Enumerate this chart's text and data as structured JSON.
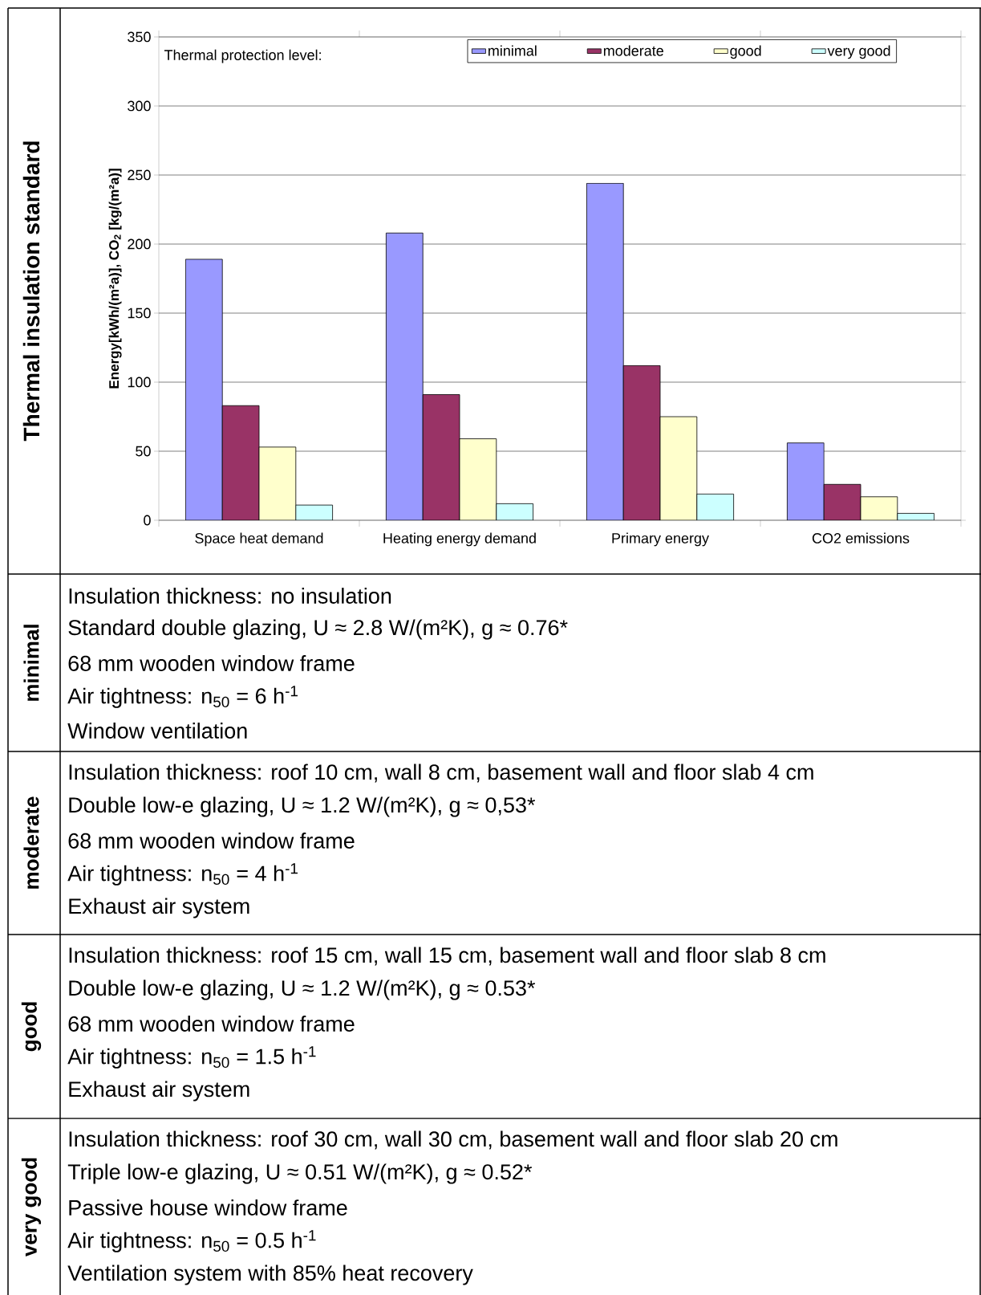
{
  "chart_data": {
    "type": "bar",
    "categories": [
      "Space heat demand",
      "Heating energy demand",
      "Primary energy",
      "CO2 emissions"
    ],
    "series": [
      {
        "name": "minimal",
        "color": "#9999ff",
        "values": [
          189,
          208,
          244,
          56
        ]
      },
      {
        "name": "moderate",
        "color": "#993366",
        "values": [
          83,
          91,
          112,
          26
        ]
      },
      {
        "name": "good",
        "color": "#ffffcc",
        "values": [
          53,
          59,
          75,
          17
        ]
      },
      {
        "name": "very good",
        "color": "#ccffff",
        "values": [
          11,
          12,
          19,
          5
        ]
      }
    ],
    "ylabel": "Energy[kWh/(m²a)], CO$_{2}$ [kg/(m²a)]",
    "legend_title": "Thermal protection level:",
    "legend": "top",
    "ylim": [
      0,
      350
    ],
    "yticks": [
      0,
      50,
      100,
      150,
      200,
      250,
      300,
      350
    ],
    "grid": "y",
    "annotations": [
      "Thermal insulation standard",
      "minimal",
      "Insulation thickness: no insulation",
      "Standard double glazing, U ≈ 2.8 W/(m²K), g  ≈ 0.76*",
      "68 mm wooden window frame",
      "Air tightness: n$_{50}$ = 6 h$^{-1}$",
      "Window ventilation",
      "moderate",
      "Insulation thickness: roof 10 cm, wall 8 cm, basement wall and floor slab 4 cm",
      "Double low-e glazing, U ≈ 1.2 W/(m²K), g  ≈ 0,53*",
      "68 mm wooden window frame",
      "Air tightness: n$_{50}$ = 4 h$^{-1}$",
      "Exhaust air system",
      "good",
      "Insulation thickness: roof 15 cm, wall 15 cm, basement wall and floor slab 8 cm",
      "Double low-e glazing, U ≈ 1.2 W/(m²K), g  ≈ 0.53*",
      "68 mm wooden window frame",
      "Air tightness: n$_{50}$ = 1.5 h$^{-1}$",
      "Exhaust air system",
      "very good",
      "Insulation thickness: roof 30 cm, wall 30 cm, basement wall and floor slab 20 cm",
      "Triple low-e glazing, U ≈ 0.51 W/(m²K), g ≈ 0.52*",
      "Passive house window frame",
      "Air tightness: n$_{50}$ = 0.5 h$^{-1}$",
      "Ventilation system with 85% heat recovery"
    ]
  }
}
